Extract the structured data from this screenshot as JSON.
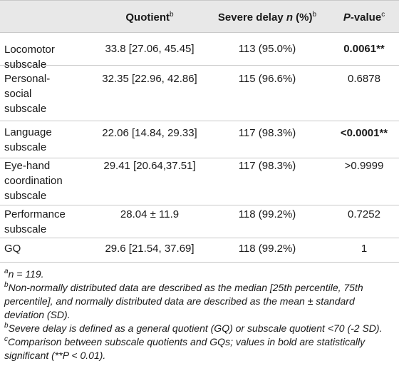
{
  "header": {
    "quotient_label": "Quotient",
    "quotient_sup": "b",
    "severe_label": "Severe delay ",
    "severe_n": "n",
    "severe_pct": " (%)",
    "severe_sup": "b",
    "pvalue_label": "P",
    "pvalue_rest": "-value",
    "pvalue_sup": "c"
  },
  "rows": [
    {
      "name_line1": "Locomotor",
      "name_line2": "subscale",
      "name_line3": "",
      "quotient": "33.8 [27.06, 45.45]",
      "severe": "113 (95.0%)",
      "p": "0.0061**",
      "p_bold": true
    },
    {
      "name_line1": "Personal-",
      "name_line2": "social",
      "name_line3": "subscale",
      "quotient": "32.35 [22.96, 42.86]",
      "severe": "115 (96.6%)",
      "p": "0.6878",
      "p_bold": false
    },
    {
      "name_line1": "Language",
      "name_line2": "subscale",
      "name_line3": "",
      "quotient": "22.06 [14.84, 29.33]",
      "severe": "117 (98.3%)",
      "p": "<0.0001**",
      "p_bold": true
    },
    {
      "name_line1": "Eye-hand",
      "name_line2": "coordination",
      "name_line3": "subscale",
      "quotient": "29.41 [20.64,37.51]",
      "severe": "117 (98.3%)",
      "p": ">0.9999",
      "p_bold": false
    },
    {
      "name_line1": "Performance",
      "name_line2": "subscale",
      "name_line3": "",
      "quotient": "28.04 ± 11.9",
      "severe": "118 (99.2%)",
      "p": "0.7252",
      "p_bold": false
    },
    {
      "name_line1": "GQ",
      "name_line2": "",
      "name_line3": "",
      "quotient": "29.6 [21.54, 37.69]",
      "severe": "118 (99.2%)",
      "p": "1",
      "p_bold": false
    }
  ],
  "footnotes": {
    "a_sup": "a",
    "a_text": "n = 119.",
    "b1_sup": "b",
    "b1_text": "Non-normally distributed data are described as the median [25th percentile, 75th percentile], and normally distributed data are described as the mean ± standard deviation (SD).",
    "b2_sup": "b",
    "b2_text": "Severe delay is defined as a general quotient (GQ) or subscale quotient <70 (-2 SD).",
    "c_sup": "c",
    "c_text": "Comparison between subscale quotients and GQs; values in bold are statistically significant (**P < 0.01)."
  }
}
